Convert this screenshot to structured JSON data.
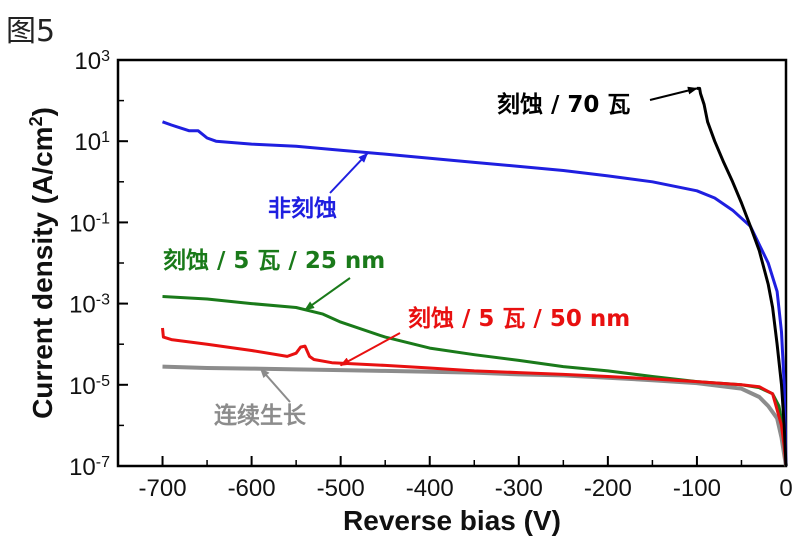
{
  "figure_label": "图5",
  "chart_data": {
    "type": "line",
    "xlabel": "Reverse bias (V)",
    "ylabel": "Current density (A/cm²)",
    "ylabel_parts": {
      "main": "Current density (A/cm",
      "sup": "2",
      "end": ")"
    },
    "xlim": [
      -750,
      0
    ],
    "ylim": [
      1e-07,
      1000
    ],
    "yscale": "log",
    "grid": false,
    "x_ticks": [
      -700,
      -600,
      -500,
      -400,
      -300,
      -200,
      -100,
      0
    ],
    "x_tick_labels": [
      "-700",
      "-600",
      "-500",
      "-400",
      "-300",
      "-200",
      "-100",
      "0"
    ],
    "y_ticks": [
      {
        "value": 1e-07,
        "base": "10",
        "exp": "-7"
      },
      {
        "value": 1e-05,
        "base": "10",
        "exp": "-5"
      },
      {
        "value": 0.001,
        "base": "10",
        "exp": "-3"
      },
      {
        "value": 0.1,
        "base": "10",
        "exp": "-1"
      },
      {
        "value": 10,
        "base": "10",
        "exp": "1"
      },
      {
        "value": 1000,
        "base": "10",
        "exp": "3"
      }
    ],
    "series": [
      {
        "name": "刻蚀 / 70 瓦",
        "color": "#000000",
        "x": [
          -100,
          -97,
          -96,
          -92,
          -88,
          -80,
          -70,
          -60,
          -50,
          -40,
          -30,
          -20,
          -15,
          -10,
          -5,
          -2,
          0
        ],
        "y": [
          200,
          200,
          150,
          80,
          30,
          10,
          3,
          1,
          0.3,
          0.08,
          0.02,
          0.003,
          0.0008,
          0.0001,
          1e-05,
          1e-06,
          1e-07
        ]
      },
      {
        "name": "非刻蚀",
        "color": "#1f1fe0",
        "x": [
          -700,
          -690,
          -670,
          -660,
          -650,
          -640,
          -600,
          -550,
          -500,
          -450,
          -400,
          -350,
          -300,
          -250,
          -200,
          -150,
          -100,
          -80,
          -60,
          -40,
          -20,
          -10,
          -5,
          -2,
          0
        ],
        "y": [
          30,
          25,
          18,
          18,
          12,
          10,
          8.5,
          7.5,
          6,
          4.8,
          3.8,
          3,
          2.4,
          1.9,
          1.4,
          1,
          0.6,
          0.4,
          0.2,
          0.08,
          0.01,
          0.002,
          0.0002,
          1e-05,
          1e-07
        ]
      },
      {
        "name": "刻蚀 / 5 瓦 / 25 nm",
        "color": "#1a7a1a",
        "x": [
          -700,
          -650,
          -600,
          -550,
          -520,
          -500,
          -450,
          -400,
          -350,
          -300,
          -250,
          -200,
          -150,
          -100,
          -50,
          -30,
          -15,
          -8,
          -3,
          0
        ],
        "y": [
          0.0015,
          0.0013,
          0.001,
          0.0008,
          0.00055,
          0.00035,
          0.00015,
          8e-05,
          5.5e-05,
          4e-05,
          2.8e-05,
          2.2e-05,
          1.6e-05,
          1.2e-05,
          1e-05,
          8.5e-06,
          6e-06,
          3e-06,
          8e-07,
          1e-07
        ]
      },
      {
        "name": "刻蚀 / 5 瓦 / 50 nm",
        "color": "#e81010",
        "x": [
          -700,
          -699,
          -690,
          -650,
          -600,
          -560,
          -550,
          -545,
          -540,
          -535,
          -530,
          -510,
          -450,
          -400,
          -350,
          -300,
          -250,
          -200,
          -150,
          -100,
          -50,
          -30,
          -15,
          -5,
          -2,
          0
        ],
        "y": [
          0.00025,
          0.00015,
          0.00013,
          0.0001,
          7e-05,
          5e-05,
          6e-05,
          8.5e-05,
          9e-05,
          5e-05,
          4.2e-05,
          3.5e-05,
          3e-05,
          2.6e-05,
          2.2e-05,
          2e-05,
          1.8e-05,
          1.6e-05,
          1.4e-05,
          1.2e-05,
          1e-05,
          9e-06,
          6e-06,
          1e-06,
          3e-07,
          1e-07
        ]
      },
      {
        "name": "连续生长",
        "color": "#8c8c8c",
        "x": [
          -700,
          -650,
          -600,
          -550,
          -500,
          -450,
          -400,
          -350,
          -300,
          -250,
          -200,
          -150,
          -100,
          -50,
          -30,
          -20,
          -10,
          -5,
          0
        ],
        "y": [
          2.8e-05,
          2.6e-05,
          2.5e-05,
          2.4e-05,
          2.3e-05,
          2.2e-05,
          2.1e-05,
          2e-05,
          1.8e-05,
          1.7e-05,
          1.5e-05,
          1.3e-05,
          1.1e-05,
          8e-06,
          5e-06,
          3e-06,
          1.5e-06,
          5e-07,
          1e-07
        ]
      }
    ],
    "annotations": [
      {
        "series": 0,
        "text": "刻蚀 / 70 瓦",
        "color": "#000000",
        "arrow_to": [
          -100,
          200
        ]
      },
      {
        "series": 1,
        "text": "非刻蚀",
        "color": "#1f1fe0",
        "arrow_to": [
          -470,
          5
        ]
      },
      {
        "series": 2,
        "text": "刻蚀 / 5 瓦 / 25 nm",
        "color": "#1a7a1a",
        "arrow_to": [
          -540,
          0.0007
        ]
      },
      {
        "series": 3,
        "text": "刻蚀 / 5 瓦 / 50 nm",
        "color": "#e81010",
        "arrow_to": [
          -500,
          3e-05
        ]
      },
      {
        "series": 4,
        "text": "连续生长",
        "color": "#8c8c8c",
        "arrow_to": [
          -590,
          2.5e-05
        ]
      }
    ]
  }
}
